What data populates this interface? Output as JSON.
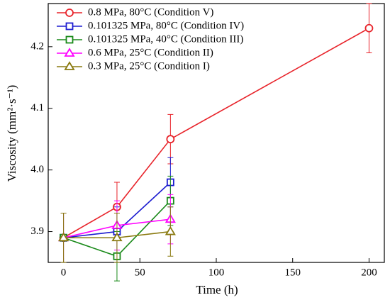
{
  "chart_data": {
    "type": "line",
    "xlabel": "Time (h)",
    "ylabel": "Viscosity (mm²·s⁻¹)",
    "xlim": [
      -10,
      210
    ],
    "xticks": [
      0,
      50,
      100,
      150,
      200
    ],
    "ylim": [
      3.85,
      4.27
    ],
    "yticks": [
      3.9,
      {
        "value": 4,
        "label": "4.0"
      },
      4.1,
      4.2
    ],
    "legend": "upper left",
    "series": [
      {
        "name": "0.8 MPa, 80°C (Condition V)",
        "color": "#e8232a",
        "marker": "circle",
        "x": [
          0,
          35,
          70,
          200
        ],
        "values": [
          3.89,
          3.94,
          4.05,
          4.23
        ],
        "errors": [
          0.04,
          0.04,
          0.04,
          0.04
        ]
      },
      {
        "name": "0.101325 MPa, 80°C (Condition IV)",
        "color": "#1c1cd0",
        "marker": "square",
        "x": [
          0,
          35,
          70
        ],
        "values": [
          3.89,
          3.9,
          3.98
        ],
        "errors": [
          0.04,
          0.04,
          0.04
        ]
      },
      {
        "name": "0.101325 MPa, 40°C (Condition III)",
        "color": "#1a8a1a",
        "marker": "square",
        "x": [
          0,
          35,
          70
        ],
        "values": [
          3.89,
          3.86,
          3.95
        ],
        "errors": [
          0.04,
          0.04,
          0.04
        ]
      },
      {
        "name": "0.6 MPa, 25°C (Condition II)",
        "color": "#ff00ff",
        "marker": "triangle",
        "x": [
          0,
          35,
          70
        ],
        "values": [
          3.89,
          3.91,
          3.92
        ],
        "errors": [
          0.04,
          0.04,
          0.04
        ]
      },
      {
        "name": "0.3 MPa, 25°C (Condition I)",
        "color": "#8a7a10",
        "marker": "triangle",
        "x": [
          0,
          35,
          70
        ],
        "values": [
          3.89,
          3.89,
          3.9
        ],
        "errors": [
          0.04,
          0.04,
          0.04
        ]
      }
    ]
  }
}
